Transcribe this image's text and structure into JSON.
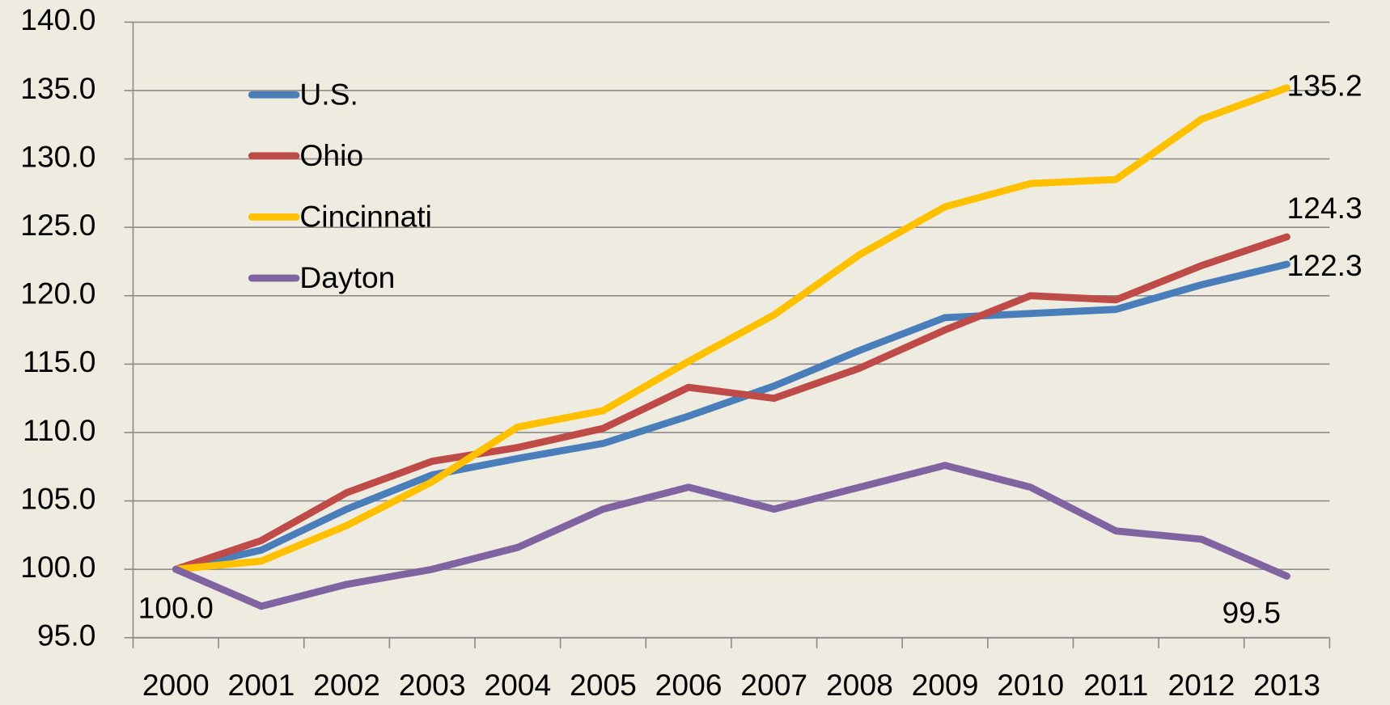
{
  "chart_data": {
    "type": "line",
    "categories": [
      "2000",
      "2001",
      "2002",
      "2003",
      "2004",
      "2005",
      "2006",
      "2007",
      "2008",
      "2009",
      "2010",
      "2011",
      "2012",
      "2013"
    ],
    "series": [
      {
        "name": "U.S.",
        "color": "#4a7ebb",
        "values": [
          100,
          101.4,
          104.4,
          106.9,
          108.1,
          109.2,
          111.2,
          113.4,
          116.0,
          118.4,
          118.7,
          119.0,
          120.8,
          122.3
        ],
        "value_labels": [
          null,
          null,
          null,
          null,
          null,
          null,
          null,
          null,
          null,
          null,
          null,
          null,
          null,
          "122.3"
        ]
      },
      {
        "name": "Ohio",
        "color": "#be4b48",
        "values": [
          100,
          102.1,
          105.6,
          107.9,
          108.9,
          110.3,
          113.3,
          112.5,
          114.7,
          117.5,
          120.0,
          119.7,
          122.2,
          124.3
        ],
        "value_labels": [
          null,
          null,
          null,
          null,
          null,
          null,
          null,
          null,
          null,
          null,
          null,
          null,
          null,
          "124.3"
        ]
      },
      {
        "name": "Cincinnati",
        "color": "#ffc000",
        "values": [
          100,
          100.6,
          103.2,
          106.4,
          110.4,
          111.6,
          115.2,
          118.6,
          123.0,
          126.5,
          128.2,
          128.5,
          132.9,
          135.2
        ],
        "value_labels": [
          null,
          null,
          null,
          null,
          null,
          null,
          null,
          null,
          null,
          null,
          null,
          null,
          null,
          "135.2"
        ]
      },
      {
        "name": "Dayton",
        "color": "#8064a2",
        "values": [
          100,
          97.3,
          98.9,
          100.0,
          101.6,
          104.4,
          106.0,
          104.4,
          106.0,
          107.6,
          106.0,
          102.8,
          102.2,
          99.5
        ],
        "value_labels": [
          "100.0",
          null,
          null,
          null,
          null,
          null,
          null,
          null,
          null,
          null,
          null,
          null,
          null,
          "99.5"
        ]
      }
    ],
    "ylim": [
      95,
      140
    ],
    "yticks": [
      {
        "value": 95,
        "label": "95.0"
      },
      {
        "value": 100,
        "label": "100.0"
      },
      {
        "value": 105,
        "label": "105.0"
      },
      {
        "value": 110,
        "label": "110.0"
      },
      {
        "value": 115,
        "label": "115.0"
      },
      {
        "value": 120,
        "label": "120.0"
      },
      {
        "value": 125,
        "label": "125.0"
      },
      {
        "value": 130,
        "label": "130.0"
      },
      {
        "value": 135,
        "label": "135.0"
      },
      {
        "value": 140,
        "label": "140.0"
      }
    ],
    "grid": true,
    "legend": "upper left"
  }
}
